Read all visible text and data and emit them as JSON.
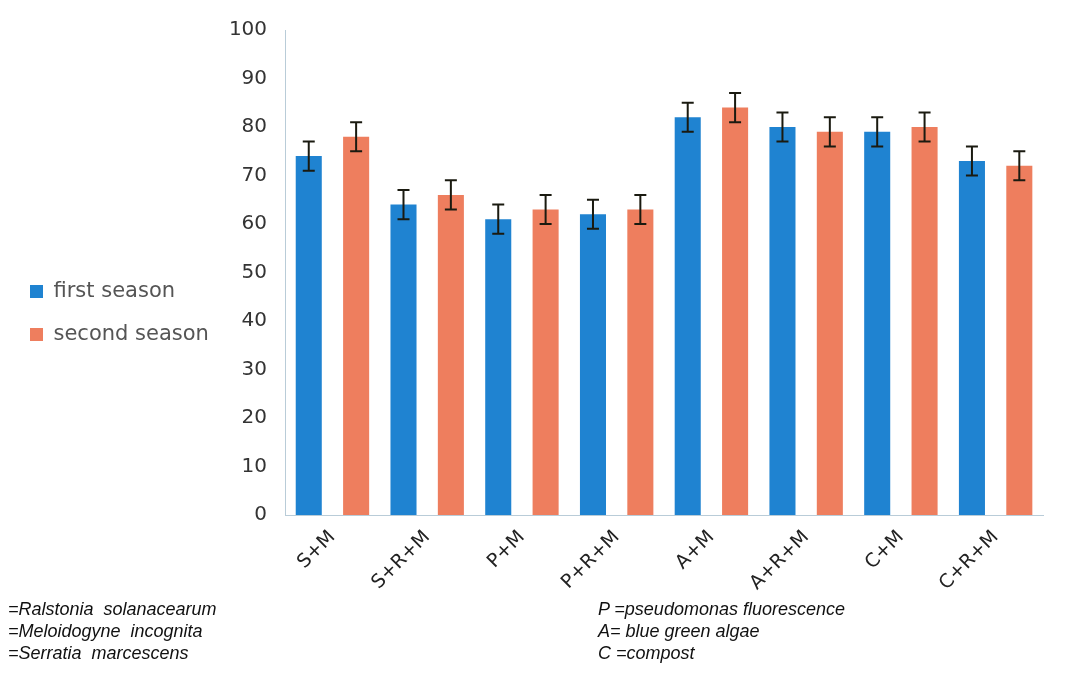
{
  "chart_data": {
    "type": "bar",
    "categories": [
      "S+M",
      "S+R+M",
      "P+M",
      "P+R+M",
      "A+M",
      "A+R+M",
      "C+M",
      "C+R+M"
    ],
    "series": [
      {
        "name": "first season",
        "color": "#1f83d1",
        "values": [
          74,
          64,
          61,
          62,
          82,
          80,
          79,
          73
        ],
        "errors": [
          3,
          3,
          3,
          3,
          3,
          3,
          3,
          3
        ]
      },
      {
        "name": "second season",
        "color": "#ee7e5e",
        "values": [
          78,
          66,
          63,
          63,
          84,
          79,
          80,
          72
        ],
        "errors": [
          3,
          3,
          3,
          3,
          3,
          3,
          3,
          3
        ]
      }
    ],
    "ylim": [
      0,
      100
    ],
    "yticks": [
      0,
      10,
      20,
      30,
      40,
      50,
      60,
      70,
      80,
      90,
      100
    ],
    "grid": false,
    "legend": "left",
    "annotations": [
      "=Ralstonia  solanacearum",
      "P =pseudomonas fluorescence",
      "=Meloidogyne  incognita",
      "A= blue green algae",
      "=Serratia  marcescens",
      "C =compost"
    ]
  }
}
